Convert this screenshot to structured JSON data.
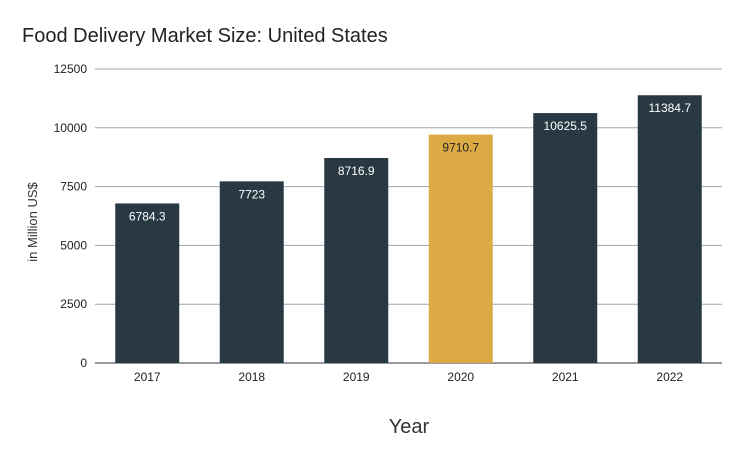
{
  "chart_data": {
    "type": "bar",
    "title": "Food Delivery Market Size: United States",
    "xlabel": "Year",
    "ylabel": "in Million US$",
    "categories": [
      "2017",
      "2018",
      "2019",
      "2020",
      "2021",
      "2022"
    ],
    "values": [
      6784.3,
      7723,
      8716.9,
      9710.7,
      10625.5,
      11384.7
    ],
    "value_labels": [
      "6784.3",
      "7723",
      "8716.9",
      "9710.7",
      "10625.5",
      "11384.7"
    ],
    "ylim": [
      0,
      12500
    ],
    "yticks": [
      0,
      2500,
      5000,
      7500,
      10000,
      12500
    ],
    "grid": true,
    "legend": "none",
    "highlight_category": "2020",
    "colors": {
      "bar": "#283943",
      "highlight": "#dcaa45",
      "label_on_dark": "#ffffff",
      "label_on_highlight": "#222222",
      "grid": "#9aa8b0"
    }
  }
}
